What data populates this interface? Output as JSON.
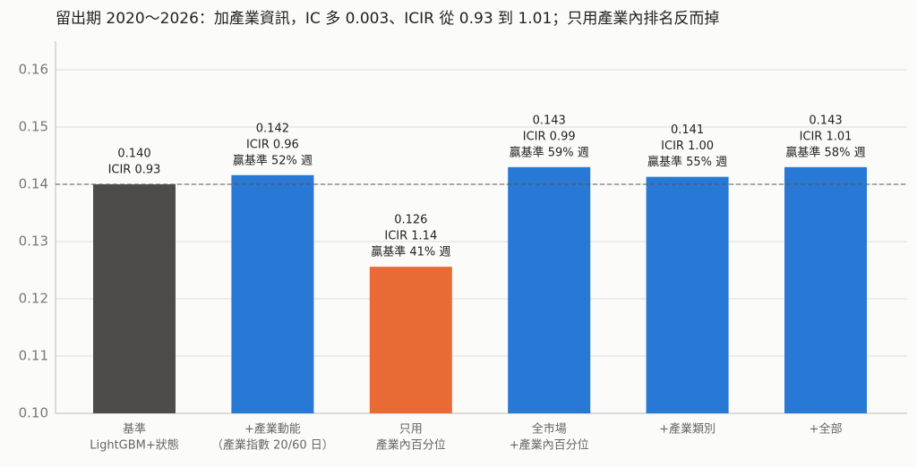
{
  "chart_data": {
    "type": "bar",
    "title": "留出期 2020～2026：加產業資訊，IC 多 0.003、ICIR 從 0.93 到 1.01；只用產業內排名反而掉",
    "categories": [
      [
        "基準",
        "LightGBM+狀態"
      ],
      [
        "+產業動能",
        "（產業指數 20/60 日）"
      ],
      [
        "只用",
        "產業內百分位"
      ],
      [
        "全市場",
        "+產業內百分位"
      ],
      [
        "+產業類別"
      ],
      [
        "+全部"
      ]
    ],
    "values": [
      0.14,
      0.1416,
      0.1256,
      0.143,
      0.1413,
      0.143
    ],
    "value_labels": [
      "0.140",
      "0.142",
      "0.126",
      "0.143",
      "0.141",
      "0.143"
    ],
    "bar_notes": [
      [
        "ICIR 0.93"
      ],
      [
        "ICIR 0.96",
        "贏基準 52% 週"
      ],
      [
        "ICIR 1.14",
        "贏基準 41% 週"
      ],
      [
        "ICIR 0.99",
        "贏基準 59% 週"
      ],
      [
        "ICIR 1.00",
        "贏基準 55% 週"
      ],
      [
        "ICIR 1.01",
        "贏基準 58% 週"
      ]
    ],
    "colors": [
      "#4d4c48",
      "#2878d6",
      "#ea6a35",
      "#2878d6",
      "#2878d6",
      "#2878d6"
    ],
    "reference_line": 0.14,
    "ylim": [
      0.1,
      0.165
    ],
    "yticks": [
      {
        "value": 0.1,
        "label": "0.10"
      },
      0.11,
      0.12,
      0.13,
      0.14,
      0.15,
      0.16
    ],
    "grid": true
  }
}
